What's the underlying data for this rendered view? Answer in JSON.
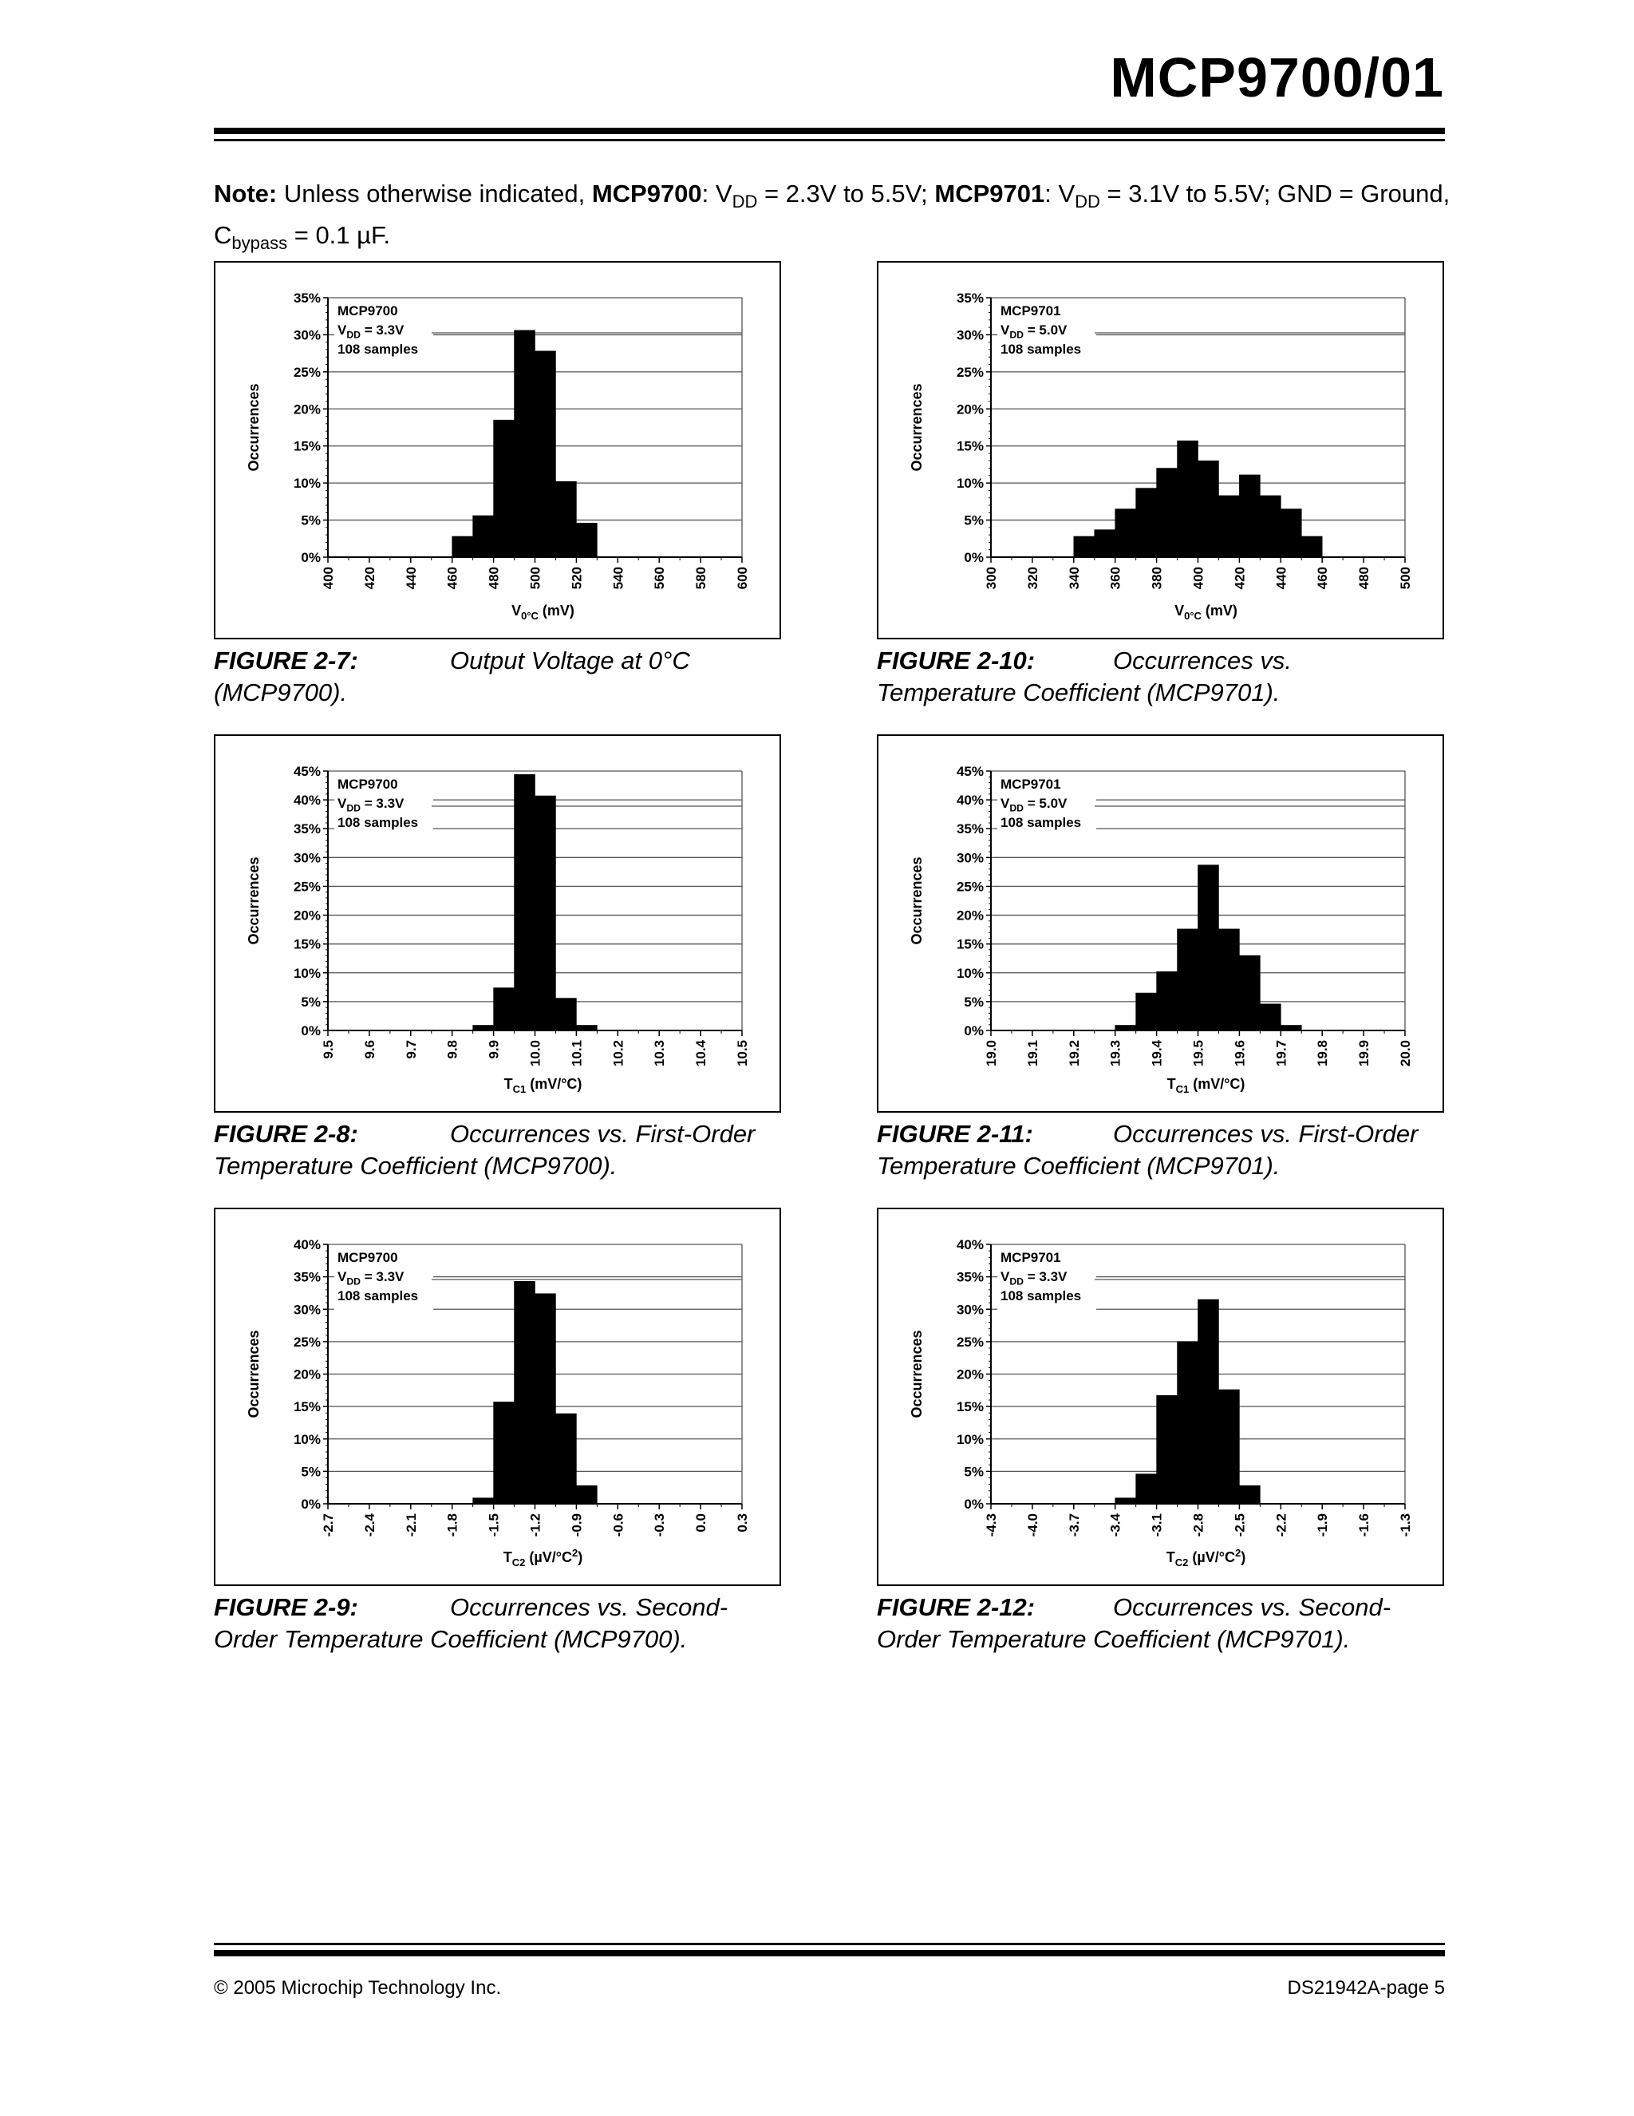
{
  "header": {
    "title": "MCP9700/01"
  },
  "note": {
    "label": "Note:",
    "t1": " Unless otherwise indicated, ",
    "dev1": "MCP9700",
    "t2": ": V",
    "sub_dd1": "DD",
    "t3": " = 2.3V to 5.5V; ",
    "dev2": "MCP9701",
    "t4": ": V",
    "sub_dd2": "DD",
    "t5": " = 3.1V to 5.5V; GND = Ground,",
    "t6": "C",
    "sub_bypass": "bypass",
    "t7": " = 0.1 µF."
  },
  "chart_data": [
    {
      "type": "bar",
      "device": "MCP9700",
      "legend": [
        "MCP9700",
        "VDD = 3.3V",
        "108 samples"
      ],
      "ylabel": "Occurrences",
      "xlabel": "V0°C (mV)",
      "ylim": [
        0,
        35
      ],
      "yticks": [
        "0%",
        "5%",
        "10%",
        "15%",
        "20%",
        "25%",
        "30%",
        "35%"
      ],
      "xticks": [
        "400",
        "420",
        "440",
        "460",
        "480",
        "500",
        "520",
        "540",
        "560",
        "580",
        "600"
      ],
      "bin_width": 10,
      "x": [
        460,
        470,
        480,
        490,
        500,
        510,
        520,
        530
      ],
      "values": [
        2.8,
        5.6,
        18.5,
        30.6,
        27.8,
        10.2,
        4.6,
        0
      ]
    },
    {
      "type": "bar",
      "device": "MCP9701",
      "legend": [
        "MCP9701",
        "VDD = 5.0V",
        "108 samples"
      ],
      "ylabel": "Occurrences",
      "xlabel": "V0°C (mV)",
      "ylim": [
        0,
        35
      ],
      "yticks": [
        "0%",
        "5%",
        "10%",
        "15%",
        "20%",
        "25%",
        "30%",
        "35%"
      ],
      "xticks": [
        "300",
        "320",
        "340",
        "360",
        "380",
        "400",
        "420",
        "440",
        "460",
        "480",
        "500"
      ],
      "bin_width": 10,
      "x": [
        340,
        350,
        360,
        370,
        380,
        390,
        400,
        410,
        420,
        430,
        440,
        450
      ],
      "values": [
        2.8,
        3.7,
        6.5,
        9.3,
        12.0,
        15.7,
        13.0,
        8.3,
        11.1,
        8.3,
        6.5,
        2.8
      ]
    },
    {
      "type": "bar",
      "device": "MCP9700",
      "legend": [
        "MCP9700",
        "VDD = 3.3V",
        "108 samples"
      ],
      "ylabel": "Occurrences",
      "xlabel": "TC1 (mV/°C)",
      "ylim": [
        0,
        45
      ],
      "yticks": [
        "0%",
        "5%",
        "10%",
        "15%",
        "20%",
        "25%",
        "30%",
        "35%",
        "40%",
        "45%"
      ],
      "xticks": [
        "9.5",
        "9.6",
        "9.7",
        "9.8",
        "9.9",
        "10.0",
        "10.1",
        "10.2",
        "10.3",
        "10.4",
        "10.5"
      ],
      "bin_width": 0.05,
      "x": [
        9.85,
        9.9,
        9.95,
        10.0,
        10.05,
        10.1
      ],
      "values": [
        0.9,
        7.4,
        44.4,
        40.7,
        5.6,
        0.9
      ]
    },
    {
      "type": "bar",
      "device": "MCP9701",
      "legend": [
        "MCP9701",
        "VDD = 5.0V",
        "108 samples"
      ],
      "ylabel": "Occurrences",
      "xlabel": "TC1 (mV/°C)",
      "ylim": [
        0,
        45
      ],
      "yticks": [
        "0%",
        "5%",
        "10%",
        "15%",
        "20%",
        "25%",
        "30%",
        "35%",
        "40%",
        "45%"
      ],
      "xticks": [
        "19.0",
        "19.1",
        "19.2",
        "19.3",
        "19.4",
        "19.5",
        "19.6",
        "19.7",
        "19.8",
        "19.9",
        "20.0"
      ],
      "bin_width": 0.05,
      "x": [
        19.3,
        19.35,
        19.4,
        19.45,
        19.5,
        19.55,
        19.6,
        19.65,
        19.7
      ],
      "values": [
        0.9,
        6.5,
        10.2,
        17.6,
        28.7,
        17.6,
        13.0,
        4.6,
        0.9
      ]
    },
    {
      "type": "bar",
      "device": "MCP9700",
      "legend": [
        "MCP9700",
        "VDD = 3.3V",
        "108 samples"
      ],
      "ylabel": "Occurrences",
      "xlabel": "TC2 (µV/°C2)",
      "ylim": [
        0,
        40
      ],
      "yticks": [
        "0%",
        "5%",
        "10%",
        "15%",
        "20%",
        "25%",
        "30%",
        "35%",
        "40%"
      ],
      "xticks": [
        "-2.7",
        "-2.4",
        "-2.1",
        "-1.8",
        "-1.5",
        "-1.2",
        "-0.9",
        "-0.6",
        "-0.3",
        "0.0",
        "0.3"
      ],
      "bin_width": 0.15,
      "x": [
        -1.65,
        -1.5,
        -1.35,
        -1.2,
        -1.05,
        -0.9
      ],
      "values": [
        0.9,
        15.7,
        34.3,
        32.4,
        13.9,
        2.8
      ]
    },
    {
      "type": "bar",
      "device": "MCP9701",
      "legend": [
        "MCP9701",
        "VDD = 3.3V",
        "108 samples"
      ],
      "ylabel": "Occurrences",
      "xlabel": "TC2 (µV/°C2)",
      "ylim": [
        0,
        40
      ],
      "yticks": [
        "0%",
        "5%",
        "10%",
        "15%",
        "20%",
        "25%",
        "30%",
        "35%",
        "40%"
      ],
      "xticks": [
        "-4.3",
        "-4.0",
        "-3.7",
        "-3.4",
        "-3.1",
        "-2.8",
        "-2.5",
        "-2.2",
        "-1.9",
        "-1.6",
        "-1.3"
      ],
      "bin_width": 0.15,
      "x": [
        -3.4,
        -3.25,
        -3.1,
        -2.95,
        -2.8,
        -2.65,
        -2.5
      ],
      "values": [
        0.9,
        4.6,
        16.7,
        25.0,
        31.5,
        17.6,
        2.8
      ]
    }
  ],
  "captions": [
    {
      "fig": "FIGURE 2-7:",
      "text": "Output Voltage at 0°C",
      "line2": "(MCP9700)."
    },
    {
      "fig": "FIGURE 2-10:",
      "text": "Occurrences vs.",
      "line2": "Temperature Coefficient (MCP9701)."
    },
    {
      "fig": "FIGURE 2-8:",
      "text": "Occurrences vs. First-Order",
      "line2": "Temperature Coefficient (MCP9700)."
    },
    {
      "fig": "FIGURE 2-11:",
      "text": "Occurrences vs. First-Order",
      "line2": "Temperature Coefficient (MCP9701)."
    },
    {
      "fig": "FIGURE 2-9:",
      "text": "Occurrences vs. Second-",
      "line2": "Order Temperature Coefficient (MCP9700)."
    },
    {
      "fig": "FIGURE 2-12:",
      "text": "Occurrences vs. Second-",
      "line2": "Order Temperature Coefficient (MCP9701)."
    }
  ],
  "footer": {
    "copyright": "© 2005 Microchip Technology Inc.",
    "page": "DS21942A-page 5"
  }
}
